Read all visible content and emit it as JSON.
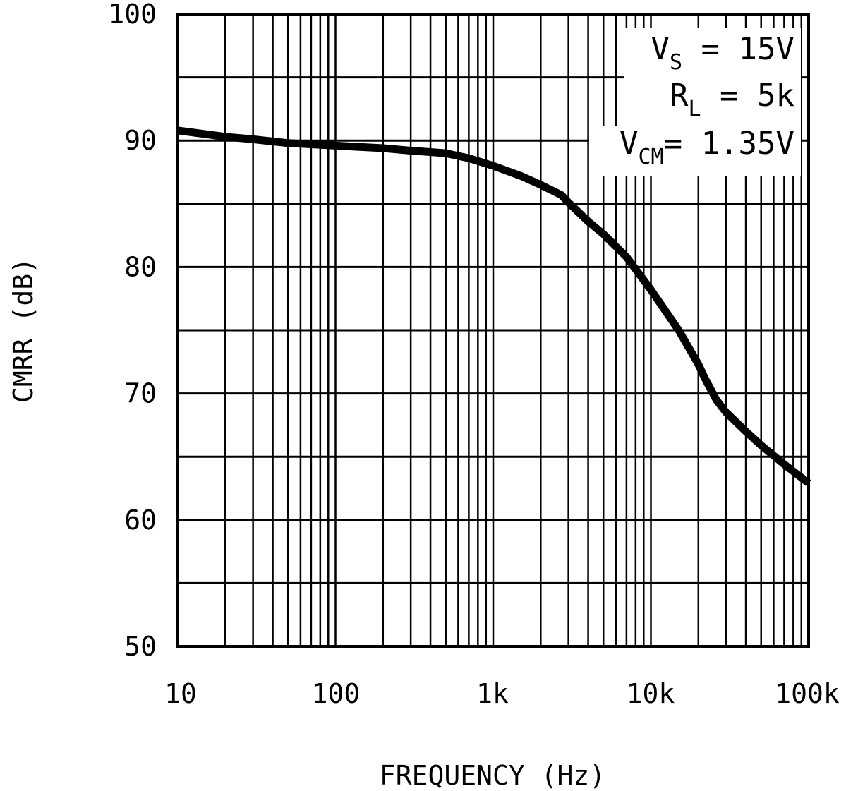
{
  "chart_data": {
    "type": "line",
    "xlabel": "FREQUENCY (Hz)",
    "ylabel": "CMRR (dB)",
    "x_scale": "log",
    "xlim": [
      10,
      100000
    ],
    "ylim": [
      50,
      100
    ],
    "grid": true,
    "x_ticks": [
      {
        "value": 10,
        "label": "10"
      },
      {
        "value": 100,
        "label": "100"
      },
      {
        "value": 1000,
        "label": "1k"
      },
      {
        "value": 10000,
        "label": "10k"
      },
      {
        "value": 100000,
        "label": "100k"
      }
    ],
    "y_ticks": [
      {
        "value": 50,
        "label": "50"
      },
      {
        "value": 60,
        "label": "60"
      },
      {
        "value": 70,
        "label": "70"
      },
      {
        "value": 80,
        "label": "80"
      },
      {
        "value": 90,
        "label": "90"
      },
      {
        "value": 100,
        "label": "100"
      }
    ],
    "series": [
      {
        "color": "#000000",
        "points": [
          [
            10,
            90.8
          ],
          [
            20,
            90.3
          ],
          [
            30,
            90.1
          ],
          [
            50,
            89.8
          ],
          [
            100,
            89.6
          ],
          [
            200,
            89.4
          ],
          [
            300,
            89.2
          ],
          [
            500,
            89.0
          ],
          [
            700,
            88.6
          ],
          [
            1000,
            88.0
          ],
          [
            1500,
            87.2
          ],
          [
            2000,
            86.5
          ],
          [
            2700,
            85.7
          ],
          [
            3000,
            85.1
          ],
          [
            4000,
            83.6
          ],
          [
            5000,
            82.6
          ],
          [
            7000,
            80.8
          ],
          [
            10000,
            78.2
          ],
          [
            15000,
            75.0
          ],
          [
            20000,
            72.3
          ],
          [
            22000,
            71.2
          ],
          [
            26000,
            69.5
          ],
          [
            30000,
            68.5
          ],
          [
            40000,
            67.0
          ],
          [
            50000,
            65.9
          ],
          [
            70000,
            64.4
          ],
          [
            100000,
            62.9
          ]
        ]
      }
    ],
    "annotations": [
      {
        "main": "V",
        "sub": "S",
        "rest": " = 15V"
      },
      {
        "main": "R",
        "sub": "L",
        "rest": " = 5k"
      },
      {
        "main": "V",
        "sub": "CM",
        "rest": "= 1.35V"
      }
    ]
  }
}
